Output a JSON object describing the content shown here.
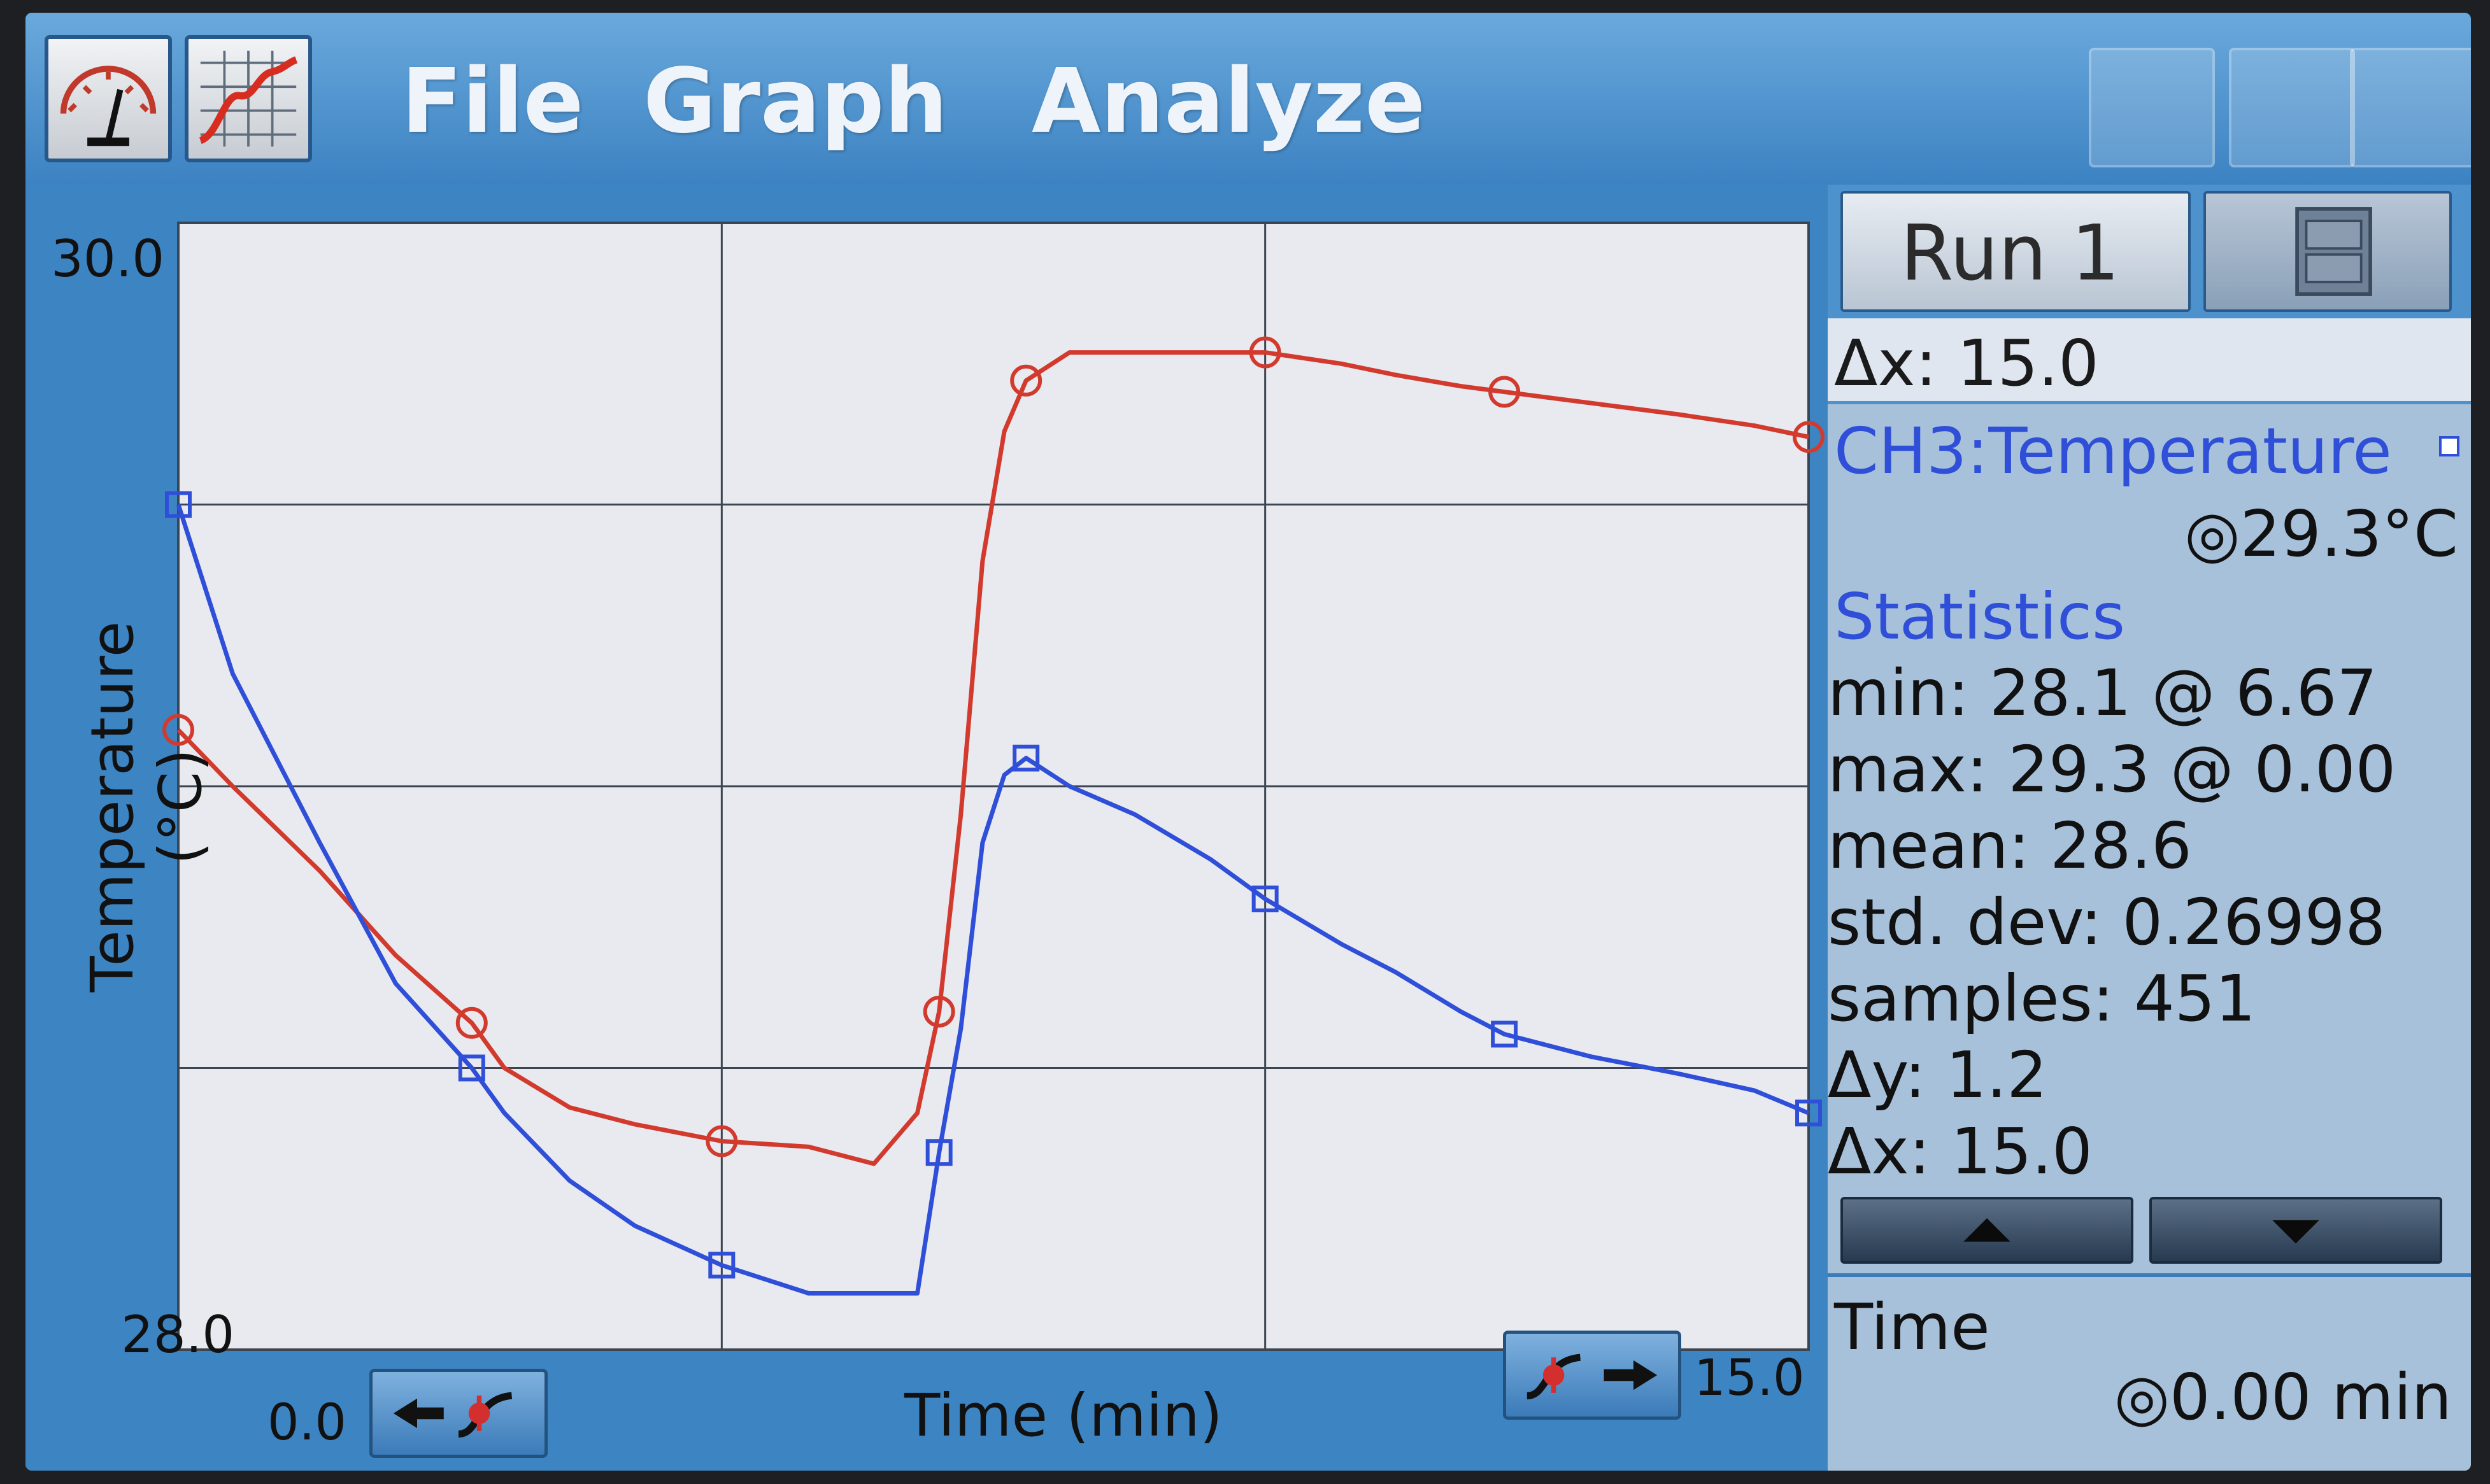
{
  "menu": {
    "items": [
      "File",
      "Graph",
      "Analyze"
    ],
    "meter_icon": "meter-gauge-icon",
    "graph_icon": "graph-icon"
  },
  "graph": {
    "y_axis_label": "Temperature (°C)",
    "x_axis_label": "Time (min)",
    "y_top_tick": "30.0",
    "y_bottom_tick": "28.0",
    "x_left_tick": "0.0",
    "x_right_tick": "15.0",
    "scroll_left_icon": "scroll-left-icon",
    "scroll_right_icon": "scroll-right-icon"
  },
  "chart_data": {
    "type": "line",
    "title": "",
    "xlabel": "Time (min)",
    "ylabel": "Temperature (°C)",
    "xlim": [
      0,
      15
    ],
    "ylim": [
      28.0,
      30.0
    ],
    "grid": true,
    "series": [
      {
        "color": "#d23a2e",
        "marker": "circle",
        "x": [
          0.0,
          0.5,
          1.3,
          2.0,
          2.7,
          3.0,
          3.6,
          4.2,
          5.0,
          5.8,
          6.4,
          6.8,
          7.0,
          7.2,
          7.4,
          7.6,
          7.8,
          8.2,
          8.8,
          9.5,
          10.0,
          10.7,
          11.2,
          11.8,
          12.2,
          13.0,
          13.8,
          14.5,
          15.0
        ],
        "y": [
          29.1,
          29.0,
          28.85,
          28.7,
          28.58,
          28.5,
          28.43,
          28.4,
          28.37,
          28.36,
          28.33,
          28.42,
          28.6,
          28.95,
          29.4,
          29.63,
          29.72,
          29.77,
          29.77,
          29.77,
          29.77,
          29.75,
          29.73,
          29.71,
          29.7,
          29.68,
          29.66,
          29.64,
          29.62
        ]
      },
      {
        "color": "#2f4fd8",
        "marker": "square",
        "x": [
          0.0,
          0.5,
          1.3,
          2.0,
          2.7,
          3.0,
          3.6,
          4.2,
          5.0,
          5.8,
          6.4,
          6.8,
          7.0,
          7.2,
          7.4,
          7.6,
          7.8,
          8.2,
          8.8,
          9.5,
          10.0,
          10.7,
          11.2,
          11.8,
          12.2,
          13.0,
          13.8,
          14.5,
          15.0
        ],
        "y": [
          29.5,
          29.2,
          28.9,
          28.65,
          28.5,
          28.42,
          28.3,
          28.22,
          28.15,
          28.1,
          28.1,
          28.1,
          28.35,
          28.57,
          28.9,
          29.02,
          29.05,
          29.0,
          28.95,
          28.87,
          28.8,
          28.72,
          28.67,
          28.6,
          28.56,
          28.52,
          28.49,
          28.46,
          28.42
        ]
      }
    ]
  },
  "panel": {
    "run_label": "Run 1",
    "storage_icon": "file-cabinet-icon",
    "delta_x_top": "Δx: 15.0",
    "channel": "CH3:Temperature",
    "channel_checkbox_icon": "checkbox-icon",
    "live_value": "◎29.3°C",
    "statistics_title": "Statistics",
    "stats": {
      "min": "min: 28.1 @ 6.67",
      "max": "max: 29.3 @ 0.00",
      "mean": "mean: 28.6",
      "std_dev": "std. dev: 0.26998",
      "samples": "samples: 451",
      "delta_y": "Δy: 1.2",
      "delta_x": "Δx: 15.0"
    },
    "up_icon": "triangle-up-icon",
    "down_icon": "triangle-down-icon",
    "time_label": "Time",
    "time_value": "◎0.00 min"
  },
  "colors": {
    "accent_blue": "#3f86c4",
    "plot_background": "#e9eaef",
    "red_series": "#d23a2e",
    "blue_series": "#2f4fd8",
    "panel_text_blue": "#2f4fd8"
  }
}
